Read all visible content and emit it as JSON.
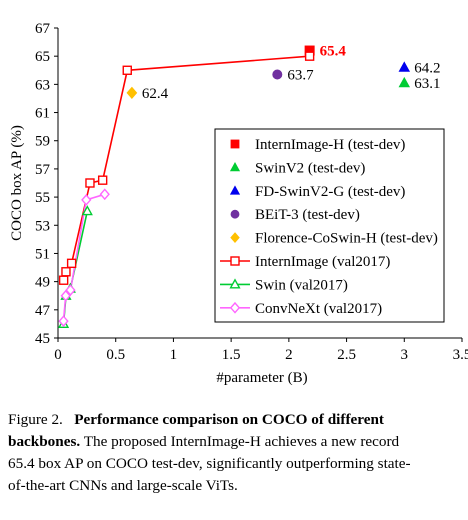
{
  "chart_data": {
    "type": "scatter",
    "xlabel": "#parameter (B)",
    "ylabel": "COCO box AP (%)",
    "xlim": [
      0,
      3.5
    ],
    "ylim": [
      45,
      67
    ],
    "x_ticks": [
      "0",
      "0.5",
      "1",
      "1.5",
      "2",
      "2.5",
      "3",
      "3.5"
    ],
    "y_ticks": [
      "45",
      "47",
      "49",
      "51",
      "53",
      "55",
      "57",
      "59",
      "61",
      "63",
      "65",
      "67"
    ],
    "grid": false,
    "legend_position": "right",
    "series": [
      {
        "name": "InternImage-H (test-dev)",
        "kind": "marker",
        "marker": "square",
        "filled": true,
        "color": "#ff0000",
        "points": [
          [
            2.18,
            65.4
          ]
        ]
      },
      {
        "name": "SwinV2 (test-dev)",
        "kind": "marker",
        "marker": "triangle",
        "filled": true,
        "color": "#00cc33",
        "points": [
          [
            3.0,
            63.1
          ]
        ]
      },
      {
        "name": "FD-SwinV2-G (test-dev)",
        "kind": "marker",
        "marker": "triangle",
        "filled": true,
        "color": "#0000ee",
        "points": [
          [
            3.0,
            64.2
          ]
        ]
      },
      {
        "name": "BEiT-3 (test-dev)",
        "kind": "marker",
        "marker": "circle",
        "filled": true,
        "color": "#7030a0",
        "points": [
          [
            1.9,
            63.7
          ]
        ]
      },
      {
        "name": "Florence-CoSwin-H (test-dev)",
        "kind": "marker",
        "marker": "diamond",
        "filled": true,
        "color": "#ffc000",
        "points": [
          [
            0.64,
            62.4
          ]
        ]
      },
      {
        "name": "InternImage (val2017)",
        "kind": "line",
        "marker": "square",
        "filled": false,
        "color": "#ff0000",
        "points": [
          [
            0.049,
            49.1
          ],
          [
            0.069,
            49.7
          ],
          [
            0.118,
            50.3
          ],
          [
            0.277,
            56.0
          ],
          [
            0.387,
            56.2
          ],
          [
            0.6,
            64.0
          ],
          [
            2.18,
            65.0
          ]
        ]
      },
      {
        "name": "Swin (val2017)",
        "kind": "line",
        "marker": "triangle",
        "filled": false,
        "color": "#00cc33",
        "points": [
          [
            0.048,
            46.0
          ],
          [
            0.069,
            48.0
          ],
          [
            0.107,
            48.5
          ],
          [
            0.254,
            54.0
          ]
        ]
      },
      {
        "name": "ConvNeXt (val2017)",
        "kind": "line",
        "marker": "diamond",
        "filled": false,
        "color": "#ff66ff",
        "points": [
          [
            0.048,
            46.2
          ],
          [
            0.067,
            48.0
          ],
          [
            0.108,
            48.4
          ],
          [
            0.245,
            54.8
          ],
          [
            0.405,
            55.2
          ]
        ]
      }
    ],
    "annotations": [
      {
        "text": "65.4",
        "x": 2.18,
        "y": 65.4,
        "color": "#ff0000",
        "bold": true
      },
      {
        "text": "64.2",
        "x": 3.0,
        "y": 64.2,
        "color": "#000000",
        "bold": false
      },
      {
        "text": "63.1",
        "x": 3.0,
        "y": 63.1,
        "color": "#000000",
        "bold": false
      },
      {
        "text": "63.7",
        "x": 1.9,
        "y": 63.7,
        "color": "#000000",
        "bold": false
      },
      {
        "text": "62.4",
        "x": 0.64,
        "y": 62.4,
        "color": "#000000",
        "bold": false
      }
    ]
  },
  "caption": {
    "label": "Figure 2.",
    "title": "Performance comparison on COCO of different",
    "title_end": "backbones.",
    "text_1": " The proposed InternImage-H achieves a new record",
    "text_2": "65.4 box AP on COCO test-dev, significantly outperforming state-",
    "text_3": "of-the-art CNNs and large-scale ViTs."
  }
}
